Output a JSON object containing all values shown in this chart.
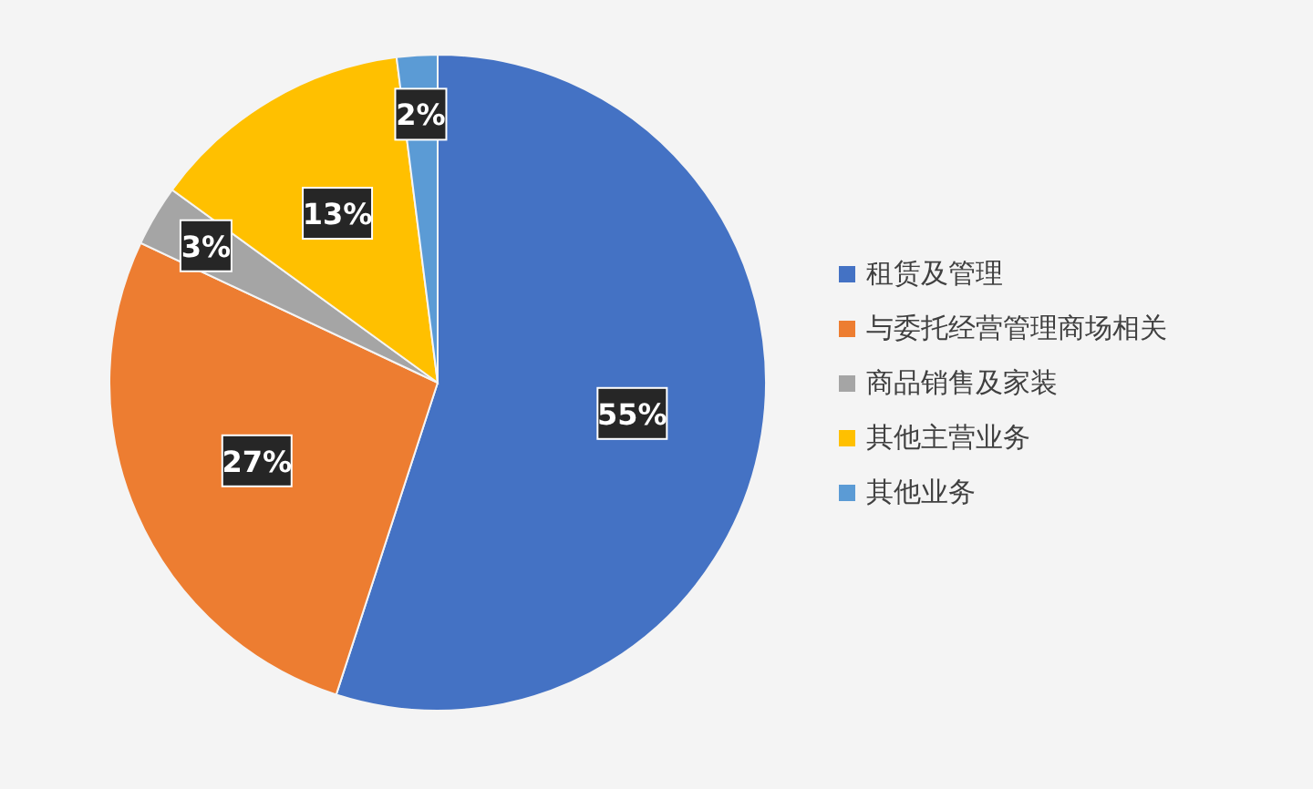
{
  "chart_data": {
    "type": "pie",
    "categories": [
      "租赁及管理",
      "与委托经营管理商场相关",
      "商品销售及家装",
      "其他主营业务",
      "其他业务"
    ],
    "values": [
      55,
      27,
      3,
      13,
      2
    ],
    "value_labels": [
      "55%",
      "27%",
      "3%",
      "13%",
      "2%"
    ],
    "colors": [
      "#4472c4",
      "#ed7d31",
      "#a5a5a5",
      "#ffc000",
      "#5b9bd5"
    ],
    "legend": "right"
  }
}
